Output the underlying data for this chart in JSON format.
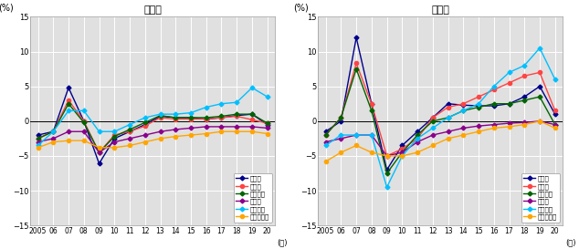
{
  "years": [
    2005,
    2006,
    2007,
    2008,
    2009,
    2010,
    2011,
    2012,
    2013,
    2014,
    2015,
    2016,
    2017,
    2018,
    2019,
    2020
  ],
  "residential": {
    "tokyo": [
      -2.0,
      -1.5,
      4.8,
      0.0,
      -6.1,
      -2.5,
      -1.5,
      -0.5,
      0.7,
      0.5,
      0.5,
      0.3,
      0.5,
      0.8,
      1.0,
      -0.5
    ],
    "osaka": [
      -2.5,
      -1.5,
      3.0,
      0.0,
      -4.5,
      -2.0,
      -1.5,
      -0.7,
      0.5,
      0.3,
      0.3,
      0.3,
      0.5,
      0.7,
      0.2,
      -0.3
    ],
    "nagoya": [
      -2.5,
      -1.5,
      2.5,
      -0.2,
      -4.5,
      -2.2,
      -1.2,
      -0.2,
      0.8,
      0.5,
      0.5,
      0.5,
      0.7,
      1.0,
      1.0,
      -0.3
    ],
    "chiho": [
      -3.0,
      -2.5,
      -1.5,
      -1.5,
      -4.5,
      -3.0,
      -2.5,
      -2.0,
      -1.5,
      -1.2,
      -1.0,
      -0.8,
      -0.8,
      -0.8,
      -0.8,
      -1.0
    ],
    "chihoshi": [
      -3.5,
      -1.5,
      1.5,
      1.5,
      -1.5,
      -1.5,
      -0.5,
      0.5,
      1.0,
      1.0,
      1.2,
      2.0,
      2.5,
      2.7,
      4.8,
      3.5
    ],
    "chihoother": [
      -3.8,
      -3.0,
      -2.8,
      -2.8,
      -3.8,
      -3.8,
      -3.5,
      -3.0,
      -2.5,
      -2.2,
      -2.0,
      -1.8,
      -1.5,
      -1.5,
      -1.5,
      -1.8
    ]
  },
  "commercial": {
    "tokyo": [
      -1.5,
      0.0,
      12.0,
      2.5,
      -7.0,
      -3.5,
      -1.5,
      0.5,
      2.5,
      2.3,
      2.2,
      2.2,
      2.5,
      3.5,
      5.0,
      1.0
    ],
    "osaka": [
      -2.0,
      0.5,
      8.3,
      2.5,
      -5.0,
      -4.0,
      -2.5,
      0.5,
      2.0,
      2.5,
      3.5,
      4.5,
      5.5,
      6.5,
      7.0,
      1.5
    ],
    "nagoya": [
      -2.0,
      0.5,
      7.5,
      1.5,
      -7.5,
      -4.5,
      -2.0,
      0.0,
      0.5,
      1.5,
      2.0,
      2.5,
      2.5,
      3.0,
      3.5,
      -0.5
    ],
    "chiho": [
      -3.0,
      -2.5,
      -2.0,
      -2.0,
      -5.0,
      -4.5,
      -3.0,
      -2.0,
      -1.5,
      -1.0,
      -0.7,
      -0.5,
      -0.3,
      -0.2,
      0.0,
      -0.5
    ],
    "chihoshi": [
      -3.5,
      -2.0,
      -2.0,
      -2.0,
      -9.5,
      -5.0,
      -2.5,
      -1.0,
      0.5,
      1.5,
      2.5,
      5.0,
      7.0,
      8.0,
      10.5,
      6.0
    ],
    "chihoother": [
      -5.8,
      -4.5,
      -3.5,
      -4.5,
      -5.0,
      -5.0,
      -4.5,
      -3.5,
      -2.5,
      -2.0,
      -1.5,
      -1.0,
      -0.8,
      -0.5,
      0.0,
      -1.0
    ]
  },
  "colors": {
    "tokyo": "#00008B",
    "osaka": "#FF4444",
    "nagoya": "#006400",
    "chiho": "#8B008B",
    "chihoshi": "#00BFFF",
    "chihoother": "#FFA500"
  },
  "legend_labels": {
    "tokyo": "東京圈",
    "osaka": "大阪圈",
    "nagoya": "名古屋圈",
    "chiho": "地方圈",
    "chihoshi": "地方四市",
    "chihoother": "地方その他"
  },
  "title_residential": "住宅地",
  "title_commercial": "商業地",
  "ylabel": "(%)",
  "xlabel": "(年)",
  "ylim": [
    -15,
    15
  ],
  "yticks": [
    -15,
    -10,
    -5,
    0,
    5,
    10,
    15
  ],
  "bg_color": "#E0E0E0"
}
